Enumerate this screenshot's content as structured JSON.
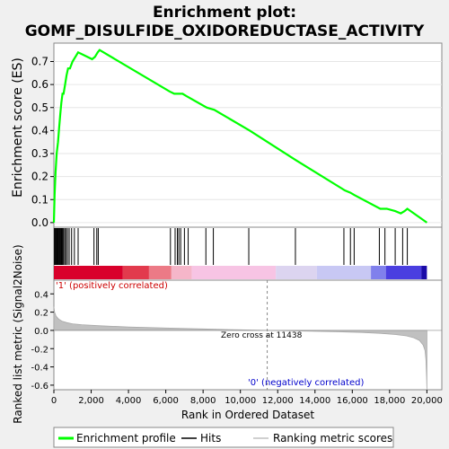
{
  "chart_data": {
    "type": "line",
    "title_line1": "Enrichment plot:",
    "title_line2": "GOMF_DISULFIDE_OXIDOREDUCTASE_ACTIVITY",
    "top_panel": {
      "ylabel": "Enrichment score (ES)",
      "ylim": [
        -0.02,
        0.78
      ],
      "yticks": [
        "0.0",
        "0.1",
        "0.2",
        "0.3",
        "0.4",
        "0.5",
        "0.6",
        "0.7"
      ],
      "series": [
        {
          "name": "Enrichment profile",
          "color": "#00ff00",
          "x": [
            0,
            40,
            90,
            150,
            220,
            280,
            340,
            400,
            460,
            520,
            600,
            680,
            760,
            860,
            1000,
            1150,
            1300,
            2050,
            2200,
            2350,
            2450,
            6200,
            6450,
            6600,
            6750,
            6900,
            7100,
            8200,
            8600,
            10500,
            13000,
            15600,
            15900,
            16100,
            17500,
            17650,
            17850,
            18300,
            18600,
            18800,
            18950,
            20000
          ],
          "y": [
            0.0,
            0.12,
            0.22,
            0.3,
            0.35,
            0.41,
            0.47,
            0.52,
            0.56,
            0.56,
            0.6,
            0.64,
            0.67,
            0.67,
            0.7,
            0.72,
            0.74,
            0.71,
            0.72,
            0.74,
            0.75,
            0.57,
            0.56,
            0.56,
            0.56,
            0.56,
            0.55,
            0.5,
            0.49,
            0.4,
            0.27,
            0.14,
            0.13,
            0.12,
            0.06,
            0.06,
            0.06,
            0.05,
            0.04,
            0.05,
            0.06,
            0.0
          ]
        }
      ]
    },
    "hits": {
      "name": "Hits",
      "positions": [
        30,
        70,
        110,
        150,
        190,
        230,
        270,
        310,
        350,
        390,
        430,
        470,
        520,
        580,
        650,
        730,
        820,
        950,
        1100,
        1300,
        2150,
        2300,
        2380,
        6250,
        6500,
        6620,
        6700,
        6800,
        7000,
        7200,
        8150,
        8550,
        10450,
        12950,
        15550,
        15900,
        16100,
        17450,
        17750,
        18300,
        18700,
        18950
      ]
    },
    "color_bar": {
      "segments": [
        "#d9002b",
        "#e23a4d",
        "#ec7a86",
        "#f5b6c9",
        "#f7c4e4",
        "#dcd4f0",
        "#c8c8f4",
        "#8080ec",
        "#4a3ee0",
        "#1a0aa8"
      ],
      "breaks": [
        0,
        3700,
        5100,
        6300,
        7400,
        11900,
        14100,
        17000,
        17800,
        19700,
        20000
      ]
    },
    "bottom_panel": {
      "ylabel": "Ranked list metric (Signal2Noise)",
      "ylim": [
        -0.65,
        0.55
      ],
      "yticks": [
        "-0.6",
        "-0.4",
        "-0.2",
        "0.0",
        "0.2",
        "0.4"
      ],
      "label_pos": "'1' (positively correlated)",
      "label_neg": "'0' (negatively correlated)",
      "zero_cross_text": "Zero cross at 11438",
      "zero_cross": 11438,
      "metric_x": [
        0,
        40,
        120,
        250,
        450,
        700,
        1000,
        1500,
        2500,
        4000,
        6000,
        8000,
        10000,
        11438,
        13000,
        15000,
        16500,
        17500,
        18300,
        18900,
        19300,
        19600,
        19800,
        19900,
        19950,
        19980,
        20000
      ],
      "metric_y": [
        0.26,
        0.2,
        0.155,
        0.125,
        0.1,
        0.085,
        0.072,
        0.062,
        0.05,
        0.038,
        0.026,
        0.016,
        0.006,
        0.0,
        -0.006,
        -0.014,
        -0.022,
        -0.032,
        -0.045,
        -0.06,
        -0.08,
        -0.11,
        -0.16,
        -0.22,
        -0.32,
        -0.5,
        -0.64
      ]
    },
    "xaxis": {
      "label": "Rank in Ordered Dataset",
      "xlim": [
        0,
        20800
      ],
      "xticks": [
        "0",
        "2,000",
        "4,000",
        "6,000",
        "8,000",
        "10,000",
        "12,000",
        "14,000",
        "16,000",
        "18,000",
        "20,000"
      ]
    },
    "legend": {
      "items": [
        {
          "label": "Enrichment profile",
          "color": "#00ff00"
        },
        {
          "label": "Hits",
          "color": "#000000"
        },
        {
          "label": "Ranking metric scores",
          "color": "#c0c0c0"
        }
      ]
    }
  }
}
